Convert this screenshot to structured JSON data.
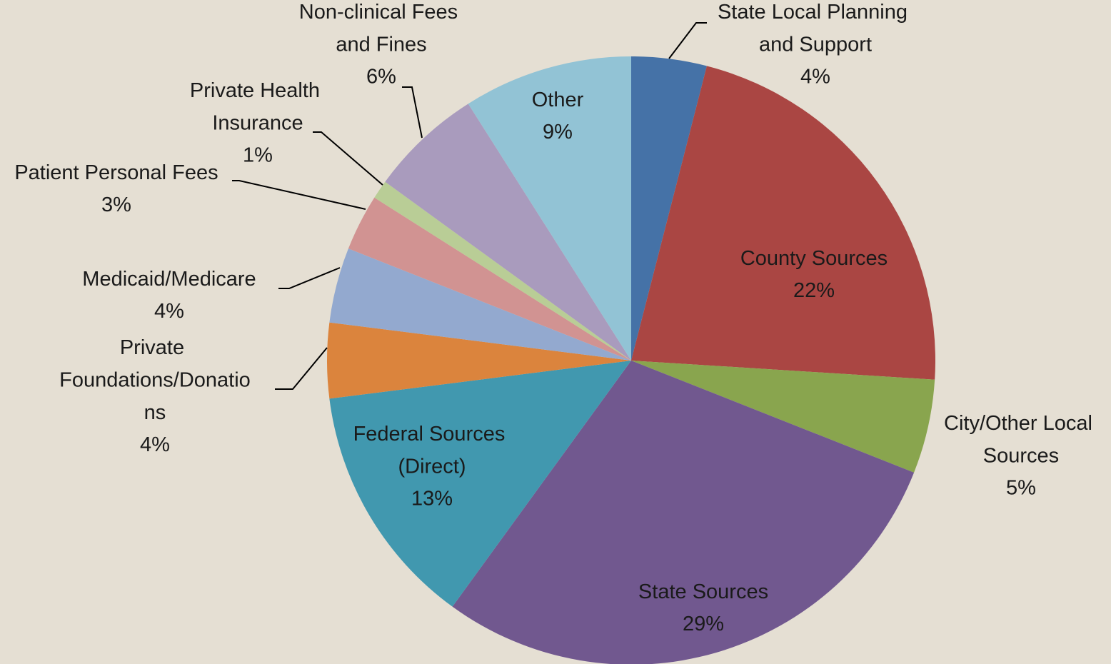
{
  "chart_data": {
    "type": "pie",
    "categories": [
      "State Local Planning and Support",
      "County Sources",
      "City/Other Local Sources",
      "State Sources",
      "Federal Sources (Direct)",
      "Private Foundations/Donations",
      "Medicaid/Medicare",
      "Patient Personal Fees",
      "Private Health Insurance",
      "Non-clinical Fees and Fines",
      "Other"
    ],
    "values": [
      4,
      22,
      5,
      29,
      13,
      4,
      4,
      3,
      1,
      6,
      9
    ],
    "value_labels": [
      "4%",
      "22%",
      "5%",
      "29%",
      "13%",
      "4%",
      "4%",
      "3%",
      "1%",
      "6%",
      "9%"
    ],
    "colors": [
      "#4572a7",
      "#aa4643",
      "#89a54e",
      "#71588f",
      "#4198af",
      "#db843d",
      "#93a9cf",
      "#d19392",
      "#b9cd96",
      "#a99bbd",
      "#92c3d5"
    ]
  }
}
